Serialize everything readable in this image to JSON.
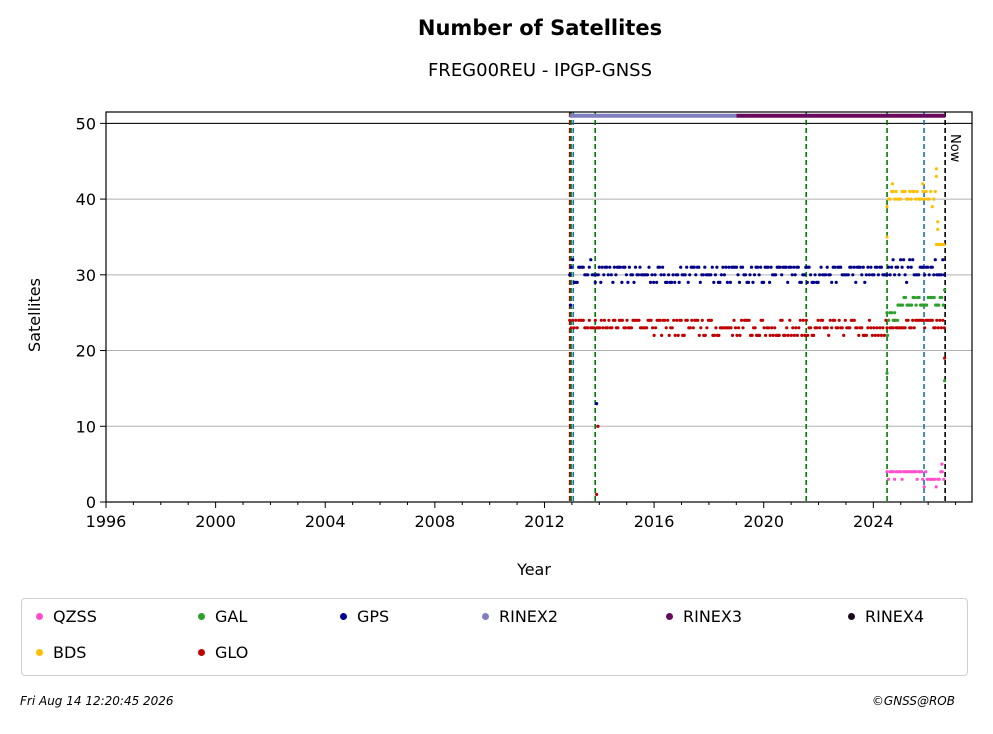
{
  "chart_data": {
    "type": "scatter",
    "title": "Number of Satellites",
    "subtitle": "FREG00REU - IPGP-GNSS",
    "xlabel": "Year",
    "ylabel": "Satellites",
    "xlim": [
      1996,
      2027.6
    ],
    "ylim": [
      0,
      51.5
    ],
    "x_ticks": [
      "1996",
      "2000",
      "2004",
      "2008",
      "2012",
      "2016",
      "2020",
      "2024"
    ],
    "x_tick_values": [
      1996,
      2000,
      2004,
      2008,
      2012,
      2016,
      2020,
      2024
    ],
    "y_ticks": [
      "0",
      "10",
      "20",
      "30",
      "40",
      "50"
    ],
    "y_tick_values": [
      0,
      10,
      20,
      30,
      40,
      50
    ],
    "grid": "horizontal",
    "now_label": "Now",
    "now_x": 2026.62,
    "vertical_lines": [
      {
        "x": 2012.92,
        "color": "#c00000"
      },
      {
        "x": 2012.97,
        "color": "#007a00"
      },
      {
        "x": 2013.05,
        "color": "#1f6fb5"
      },
      {
        "x": 2013.85,
        "color": "#007a00"
      },
      {
        "x": 2021.55,
        "color": "#007a00"
      },
      {
        "x": 2024.5,
        "color": "#007a00"
      },
      {
        "x": 2025.85,
        "color": "#1f6fb5"
      }
    ],
    "rinex_bars": [
      {
        "name": "RINEX2",
        "start": 2012.92,
        "end": 2019.0,
        "y": 51
      },
      {
        "name": "RINEX3",
        "start": 2019.0,
        "end": 2026.62,
        "y": 51
      }
    ],
    "series": [
      {
        "name": "GPS",
        "color": "#00008b",
        "segments": [
          {
            "x0": 2012.92,
            "x1": 2014.0,
            "base": 30.5,
            "spread": 1.2
          },
          {
            "x0": 2014.0,
            "x1": 2021.6,
            "base": 30.2,
            "spread": 1.3
          },
          {
            "x0": 2021.6,
            "x1": 2024.5,
            "base": 30.3,
            "spread": 1.2
          },
          {
            "x0": 2024.5,
            "x1": 2026.6,
            "base": 30.8,
            "spread": 1.4
          }
        ],
        "outliers": [
          [
            2012.95,
            26
          ],
          [
            2013.9,
            13
          ],
          [
            2013.95,
            10
          ]
        ]
      },
      {
        "name": "GLO",
        "color": "#c00000",
        "segments": [
          {
            "x0": 2012.92,
            "x1": 2016.0,
            "base": 23.5,
            "spread": 1.0
          },
          {
            "x0": 2016.0,
            "x1": 2021.6,
            "base": 23.0,
            "spread": 1.5
          },
          {
            "x0": 2021.6,
            "x1": 2024.5,
            "base": 23.0,
            "spread": 1.2
          },
          {
            "x0": 2024.5,
            "x1": 2026.6,
            "base": 23.6,
            "spread": 0.8
          }
        ],
        "outliers": [
          [
            2013.9,
            1
          ],
          [
            2013.95,
            10
          ],
          [
            2026.6,
            19
          ]
        ]
      },
      {
        "name": "GAL",
        "color": "#2ca02c",
        "segments": [
          {
            "x0": 2024.5,
            "x1": 2024.9,
            "base": 24.6,
            "spread": 0.5
          },
          {
            "x0": 2024.9,
            "x1": 2026.6,
            "base": 26.3,
            "spread": 0.8
          }
        ],
        "outliers": [
          [
            2024.5,
            17
          ],
          [
            2024.52,
            22
          ],
          [
            2026.6,
            16
          ],
          [
            2026.6,
            28
          ]
        ]
      },
      {
        "name": "BDS",
        "color": "#ffbf00",
        "segments": [
          {
            "x0": 2024.5,
            "x1": 2026.3,
            "base": 40.2,
            "spread": 1.0
          },
          {
            "x0": 2026.3,
            "x1": 2026.6,
            "base": 34.0,
            "spread": 0.3
          }
        ],
        "outliers": [
          [
            2024.5,
            35
          ],
          [
            2024.7,
            42
          ],
          [
            2025.8,
            42
          ],
          [
            2026.3,
            44
          ],
          [
            2026.3,
            43
          ],
          [
            2026.35,
            36
          ],
          [
            2026.35,
            37
          ]
        ]
      },
      {
        "name": "QZSS",
        "color": "#ff4fcf",
        "segments": [
          {
            "x0": 2024.5,
            "x1": 2025.8,
            "base": 3.8,
            "spread": 0.6
          },
          {
            "x0": 2025.8,
            "x1": 2026.6,
            "base": 3.0,
            "spread": 1.0
          }
        ],
        "outliers": [
          [
            2026.5,
            5
          ]
        ]
      }
    ]
  },
  "legend": [
    {
      "name": "QZSS",
      "color": "#ff4fcf"
    },
    {
      "name": "GAL",
      "color": "#2ca02c"
    },
    {
      "name": "GPS",
      "color": "#00008b"
    },
    {
      "name": "RINEX2",
      "color": "#7f7fbf"
    },
    {
      "name": "RINEX3",
      "color": "#6a0a5f"
    },
    {
      "name": "RINEX4",
      "color": "#1a0a1a"
    },
    {
      "name": "BDS",
      "color": "#ffbf00"
    },
    {
      "name": "GLO",
      "color": "#c00000"
    }
  ],
  "footer": {
    "timestamp": "Fri Aug 14 12:20:45 2026",
    "credit": "©GNSS@ROB"
  }
}
